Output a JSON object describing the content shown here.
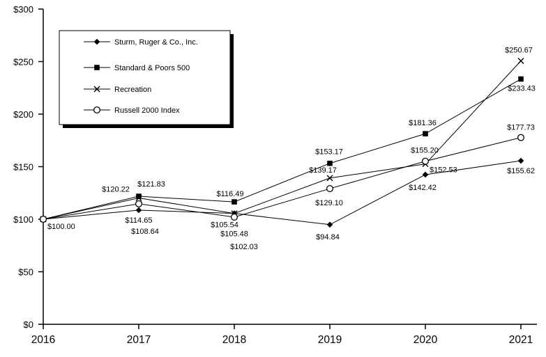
{
  "chart_data": {
    "type": "line",
    "title": "",
    "x_labels": [
      "2016",
      "2017",
      "2018",
      "2019",
      "2020",
      "2021"
    ],
    "y_axis": {
      "min": 0,
      "max": 300,
      "step": 50,
      "tick_labels": [
        "$0",
        "$50",
        "$100",
        "$150",
        "$200",
        "$250",
        "$300"
      ]
    },
    "value_prefix": "$",
    "grid": false,
    "legend_position": "top-left",
    "colors": {
      "line": "#000000",
      "background": "#ffffff",
      "text": "#000000"
    },
    "series": [
      {
        "name": "Sturm, Ruger & Co., Inc.",
        "marker": "diamond",
        "values": [
          100.0,
          108.64,
          105.54,
          94.84,
          142.42,
          155.62
        ]
      },
      {
        "name": "Standard & Poors 500",
        "marker": "square",
        "values": [
          100.0,
          121.83,
          116.49,
          153.17,
          181.36,
          233.43
        ]
      },
      {
        "name": "Recreation",
        "marker": "x",
        "values": [
          100.0,
          120.22,
          105.48,
          139.17,
          152.53,
          250.67
        ]
      },
      {
        "name": "Russell 2000 Index",
        "marker": "circle",
        "values": [
          100.0,
          114.65,
          102.03,
          129.1,
          155.2,
          177.73
        ]
      }
    ]
  }
}
